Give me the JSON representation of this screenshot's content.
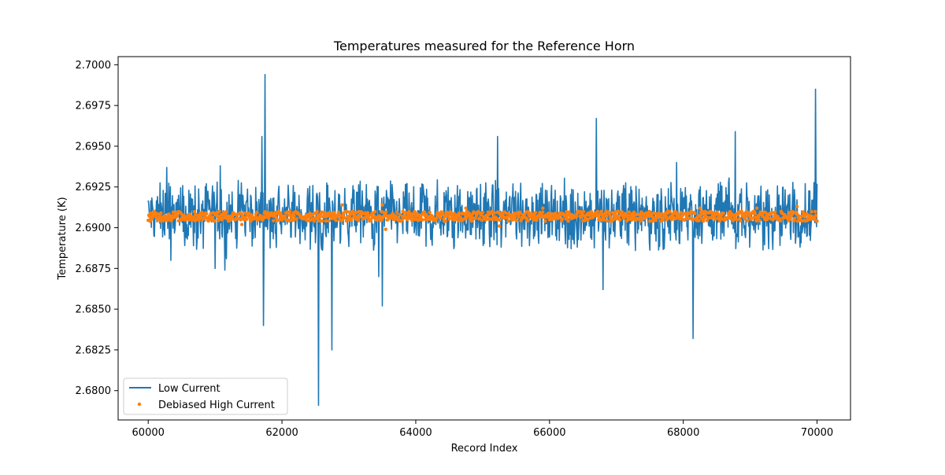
{
  "chart_data": {
    "type": "line",
    "title": "Temperatures measured for the Reference Horn",
    "xlabel": "Record Index",
    "ylabel": "Temperature (K)",
    "xlim": [
      59550,
      70500
    ],
    "ylim": [
      2.6782,
      2.7005
    ],
    "xticks": [
      60000,
      62000,
      64000,
      66000,
      68000,
      70000
    ],
    "xtick_labels": [
      "60000",
      "62000",
      "64000",
      "66000",
      "68000",
      "70000"
    ],
    "yticks": [
      2.68,
      2.6825,
      2.685,
      2.6875,
      2.69,
      2.6925,
      2.695,
      2.6975,
      2.7
    ],
    "ytick_labels": [
      "2.6800",
      "2.6825",
      "2.6850",
      "2.6875",
      "2.6900",
      "2.6925",
      "2.6950",
      "2.6975",
      "2.7000"
    ],
    "legend": {
      "location": "lower-left"
    },
    "series": [
      {
        "name": "Low Current",
        "kind": "line",
        "color": "#1f77b4",
        "x_range": [
          60000,
          70000
        ],
        "baseline_mean": 2.6908,
        "noise_band": [
          2.6895,
          2.6925
        ],
        "spikes": [
          {
            "x": 60280,
            "y": 2.6937
          },
          {
            "x": 60340,
            "y": 2.688
          },
          {
            "x": 61000,
            "y": 2.6875
          },
          {
            "x": 61080,
            "y": 2.6938
          },
          {
            "x": 61150,
            "y": 2.6874
          },
          {
            "x": 61700,
            "y": 2.6956
          },
          {
            "x": 61720,
            "y": 2.684
          },
          {
            "x": 61750,
            "y": 2.6994
          },
          {
            "x": 62550,
            "y": 2.6791
          },
          {
            "x": 62750,
            "y": 2.6825
          },
          {
            "x": 63450,
            "y": 2.687
          },
          {
            "x": 63500,
            "y": 2.6852
          },
          {
            "x": 65220,
            "y": 2.6956
          },
          {
            "x": 66700,
            "y": 2.6967
          },
          {
            "x": 66800,
            "y": 2.6862
          },
          {
            "x": 67900,
            "y": 2.694
          },
          {
            "x": 68150,
            "y": 2.6832
          },
          {
            "x": 68780,
            "y": 2.6959
          },
          {
            "x": 69980,
            "y": 2.6985
          }
        ]
      },
      {
        "name": "Debiased High Current",
        "kind": "scatter",
        "color": "#ff7f0e",
        "x_range": [
          60000,
          70000
        ],
        "baseline_mean": 2.6907,
        "band": [
          2.6904,
          2.691
        ],
        "outliers": [
          {
            "x": 61400,
            "y": 2.6902
          },
          {
            "x": 62900,
            "y": 2.6914
          },
          {
            "x": 63500,
            "y": 2.6914
          },
          {
            "x": 63550,
            "y": 2.6899
          },
          {
            "x": 64750,
            "y": 2.6912
          },
          {
            "x": 65250,
            "y": 2.6901
          },
          {
            "x": 65900,
            "y": 2.6912
          },
          {
            "x": 68250,
            "y": 2.6912
          },
          {
            "x": 69100,
            "y": 2.6912
          },
          {
            "x": 69700,
            "y": 2.6913
          }
        ]
      }
    ]
  }
}
